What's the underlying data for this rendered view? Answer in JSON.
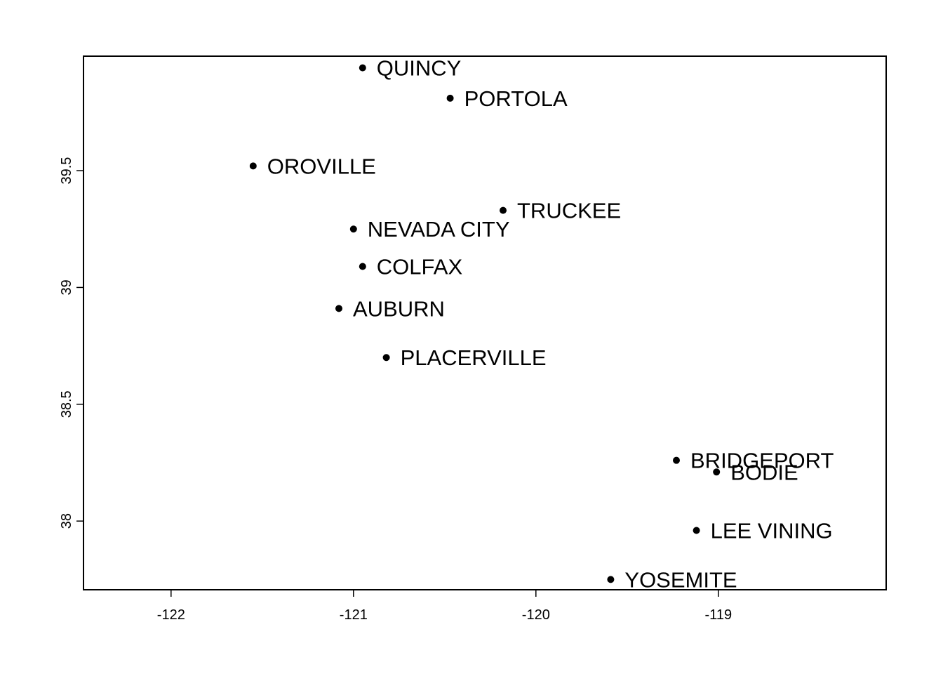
{
  "chart_data": {
    "type": "scatter",
    "title": "",
    "xlabel": "",
    "ylabel": "",
    "xlim": [
      -122.48,
      -118.08
    ],
    "ylim": [
      37.706,
      39.99
    ],
    "xticks": [
      -122,
      -121,
      -120,
      -119
    ],
    "yticks": [
      38,
      38.5,
      39,
      39.5
    ],
    "xtick_labels": [
      "-122",
      "-121",
      "-120",
      "-119"
    ],
    "ytick_labels": [
      "38",
      "38.5",
      "39",
      "39.5"
    ],
    "grid": false,
    "legend": "none",
    "points": [
      {
        "label": "QUINCY",
        "x": -120.95,
        "y": 39.94
      },
      {
        "label": "PORTOLA",
        "x": -120.47,
        "y": 39.81
      },
      {
        "label": "OROVILLE",
        "x": -121.55,
        "y": 39.52
      },
      {
        "label": "TRUCKEE",
        "x": -120.18,
        "y": 39.33
      },
      {
        "label": "NEVADA CITY",
        "x": -121.0,
        "y": 39.25
      },
      {
        "label": "COLFAX",
        "x": -120.95,
        "y": 39.09
      },
      {
        "label": "AUBURN",
        "x": -121.08,
        "y": 38.91
      },
      {
        "label": "PLACERVILLE",
        "x": -120.82,
        "y": 38.7
      },
      {
        "label": "BRIDGEPORT",
        "x": -119.23,
        "y": 38.26
      },
      {
        "label": "BODIE",
        "x": -119.01,
        "y": 38.21
      },
      {
        "label": "LEE VINING",
        "x": -119.12,
        "y": 37.96
      },
      {
        "label": "YOSEMITE",
        "x": -119.59,
        "y": 37.75
      }
    ]
  }
}
